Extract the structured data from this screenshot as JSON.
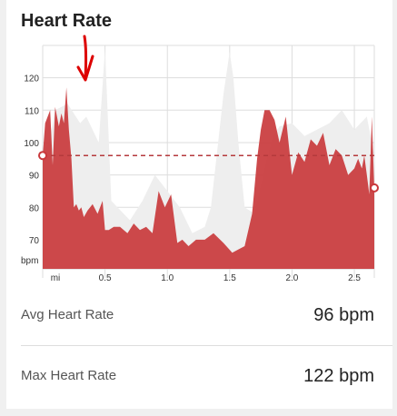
{
  "title": "Heart Rate",
  "chart_data": {
    "type": "area",
    "title": "Heart Rate",
    "ylabel": "bpm",
    "xlabel": "mi",
    "x_ticks": [
      "0.5",
      "1.0",
      "1.5",
      "2.0",
      "2.5"
    ],
    "x_tick_values": [
      0.5,
      1.0,
      1.5,
      2.0,
      2.5
    ],
    "y_ticks": [
      "70",
      "80",
      "90",
      "100",
      "110",
      "120"
    ],
    "y_tick_values": [
      70,
      80,
      90,
      100,
      110,
      120
    ],
    "xlim": [
      0,
      2.66
    ],
    "ylim": [
      61,
      130
    ],
    "average_line": 96,
    "series": [
      {
        "style": "filled-area",
        "color": "#c9393c",
        "x": [
          0,
          0.02,
          0.06,
          0.08,
          0.1,
          0.13,
          0.15,
          0.17,
          0.19,
          0.21,
          0.23,
          0.25,
          0.27,
          0.29,
          0.31,
          0.33,
          0.36,
          0.4,
          0.44,
          0.48,
          0.5,
          0.53,
          0.57,
          0.62,
          0.68,
          0.73,
          0.78,
          0.83,
          0.88,
          0.93,
          0.98,
          1.03,
          1.08,
          1.12,
          1.17,
          1.23,
          1.3,
          1.37,
          1.45,
          1.52,
          1.57,
          1.62,
          1.68,
          1.72,
          1.75,
          1.78,
          1.82,
          1.86,
          1.9,
          1.95,
          2.0,
          2.05,
          2.1,
          2.15,
          2.2,
          2.25,
          2.3,
          2.35,
          2.4,
          2.45,
          2.5,
          2.53,
          2.56,
          2.58,
          2.6,
          2.62,
          2.64,
          2.66
        ],
        "values": [
          96,
          106,
          110,
          93,
          111,
          105,
          109,
          106,
          117,
          104,
          95,
          80,
          81,
          79,
          80,
          77,
          79,
          81,
          78,
          82,
          73,
          73,
          74,
          74,
          72,
          75,
          73,
          74,
          72,
          85,
          80,
          84,
          69,
          70,
          68,
          70,
          70,
          72,
          69,
          66,
          67,
          68,
          78,
          95,
          104,
          110,
          110,
          107,
          100,
          108,
          90,
          97,
          94,
          101,
          99,
          103,
          93,
          98,
          96,
          90,
          92,
          95,
          92,
          96,
          90,
          84,
          108,
          86
        ]
      },
      {
        "style": "background-area",
        "color": "#eeeeee",
        "x": [
          0,
          0.05,
          0.1,
          0.2,
          0.3,
          0.35,
          0.4,
          0.45,
          0.5,
          0.55,
          0.6,
          0.7,
          0.8,
          0.9,
          1.0,
          1.1,
          1.2,
          1.3,
          1.35,
          1.45,
          1.5,
          1.53,
          1.57,
          1.62,
          1.7,
          1.8,
          1.85,
          1.9,
          2.0,
          2.1,
          2.2,
          2.3,
          2.4,
          2.5,
          2.6,
          2.66
        ],
        "values": [
          96,
          100,
          110,
          112,
          106,
          108,
          104,
          100,
          129,
          82,
          80,
          76,
          82,
          90,
          85,
          80,
          72,
          74,
          80,
          115,
          128,
          120,
          100,
          80,
          78,
          95,
          102,
          105,
          106,
          102,
          104,
          106,
          110,
          104,
          108,
          96
        ]
      }
    ],
    "annotations": [
      {
        "type": "hand-drawn-arrow",
        "color": "#dd0000",
        "points_to_x": 0.29
      }
    ]
  },
  "stats": [
    {
      "label": "Avg Heart Rate",
      "value": "96 bpm"
    },
    {
      "label": "Max Heart Rate",
      "value": "122 bpm"
    }
  ]
}
